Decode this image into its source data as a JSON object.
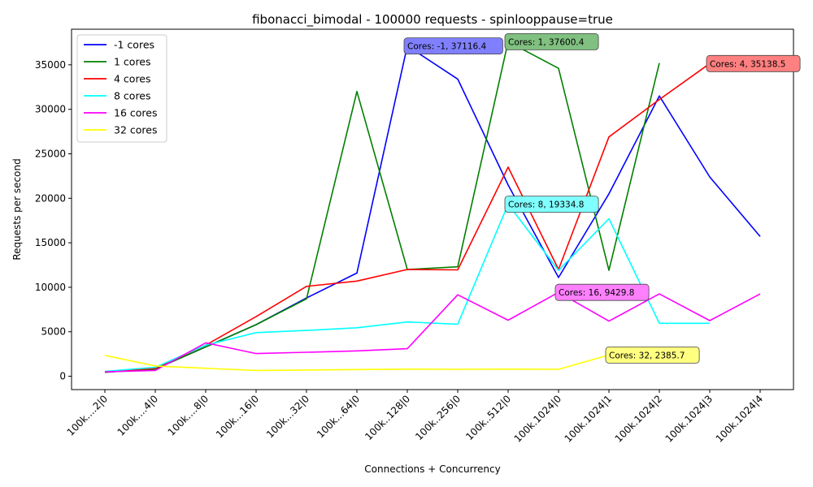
{
  "chart_data": {
    "type": "line",
    "title": "fibonacci_bimodal - 100000 requests - spinlooppause=true",
    "xlabel": "Connections + Concurrency",
    "ylabel": "Requests per second",
    "categories": [
      "100k....2|0",
      "100k....4|0",
      "100k....8|0",
      "100k...16|0",
      "100k...32|0",
      "100k...64|0",
      "100k..128|0",
      "100k..256|0",
      "100k..512|0",
      "100k.1024|0",
      "100k.1024|1",
      "100k.1024|2",
      "100k.1024|3",
      "100k.1024|4"
    ],
    "ylim": [
      -1500,
      39000
    ],
    "yticks": [
      0,
      5000,
      10000,
      15000,
      20000,
      25000,
      30000,
      35000
    ],
    "ytick_labels": [
      "0",
      "5000",
      "10000",
      "15000",
      "20000",
      "25000",
      "30000",
      "35000"
    ],
    "grid": false,
    "legend_position": "top-left",
    "series": [
      {
        "name": "-1 cores",
        "color": "#0000ff",
        "values": [
          450,
          800,
          3300,
          5800,
          8800,
          11600,
          37116.4,
          33400,
          21500,
          11100,
          20500,
          31500,
          22400,
          15700
        ]
      },
      {
        "name": "1 cores",
        "color": "#008000",
        "values": [
          450,
          800,
          3300,
          5800,
          8700,
          32000,
          12000,
          12300,
          37600.4,
          34600,
          11900,
          35200,
          null,
          null
        ]
      },
      {
        "name": "4 cores",
        "color": "#ff0000",
        "values": [
          500,
          900,
          3500,
          6700,
          10100,
          10700,
          12000,
          11950,
          23500,
          12000,
          26900,
          31100,
          35138.5,
          null
        ]
      },
      {
        "name": "8 cores",
        "color": "#00ffff",
        "values": [
          550,
          1000,
          3500,
          4900,
          5150,
          5450,
          6100,
          5850,
          19334.8,
          11900,
          17700,
          5950,
          5950,
          null
        ]
      },
      {
        "name": "16 cores",
        "color": "#ff00ff",
        "values": [
          500,
          650,
          3750,
          2550,
          2700,
          2850,
          3100,
          9150,
          6300,
          9429.8,
          6200,
          9250,
          6250,
          9250
        ]
      },
      {
        "name": "32 cores",
        "color": "#ffff00",
        "values": [
          2350,
          1150,
          900,
          650,
          700,
          750,
          800,
          780,
          800,
          780,
          2385.7,
          null,
          null,
          null
        ]
      }
    ],
    "annotations": [
      {
        "text": "Cores: -1, 37116.4",
        "x_index": 6,
        "y": 37116.4,
        "fill": "#8080ff"
      },
      {
        "text": "Cores: 1, 37600.4",
        "x_index": 8,
        "y": 37600.4,
        "fill": "#80c080"
      },
      {
        "text": "Cores: 4, 35138.5",
        "x_index": 12,
        "y": 35138.5,
        "fill": "#ff8080"
      },
      {
        "text": "Cores: 8, 19334.8",
        "x_index": 8,
        "y": 19334.8,
        "fill": "#80ffff"
      },
      {
        "text": "Cores: 16, 9429.8",
        "x_index": 9,
        "y": 9429.8,
        "fill": "#ff80ff"
      },
      {
        "text": "Cores: 32, 2385.7",
        "x_index": 10,
        "y": 2385.7,
        "fill": "#ffff80"
      }
    ]
  }
}
